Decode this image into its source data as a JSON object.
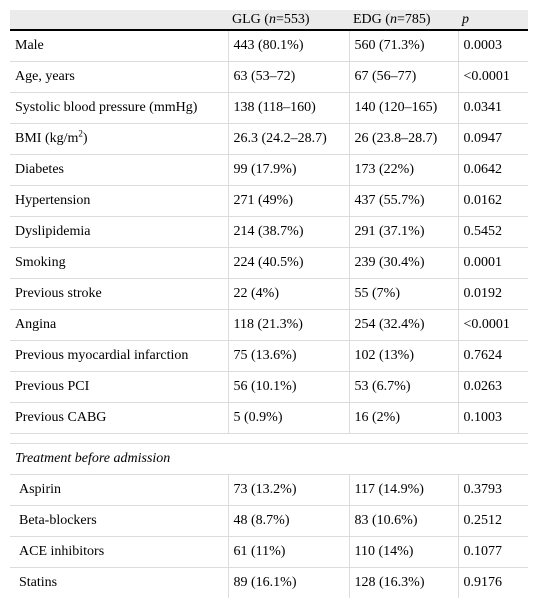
{
  "header": {
    "col1": "",
    "glg_prefix": "GLG (",
    "glg_n": "n",
    "glg_suffix": "=553)",
    "edg_prefix": "EDG (",
    "edg_n": "n",
    "edg_suffix": "=785)",
    "p": "p"
  },
  "rows": [
    {
      "label": "Male",
      "glg": "443 (80.1%)",
      "edg": "560 (71.3%)",
      "p": "0.0003"
    },
    {
      "label": "Age, years",
      "glg": "63 (53–72)",
      "edg": "67 (56–77)",
      "p": "<0.0001"
    },
    {
      "label": "Systolic blood pressure (mmHg)",
      "glg": "138 (118–160)",
      "edg": "140 (120–165)",
      "p": "0.0341"
    },
    {
      "label": "BMI (kg/m",
      "label_sup": "2",
      "label_end": ")",
      "glg": "26.3 (24.2–28.7)",
      "edg": "26 (23.8–28.7)",
      "p": "0.0947"
    },
    {
      "label": "Diabetes",
      "glg": "99 (17.9%)",
      "edg": "173 (22%)",
      "p": "0.0642"
    },
    {
      "label": "Hypertension",
      "glg": "271 (49%)",
      "edg": "437 (55.7%)",
      "p": "0.0162"
    },
    {
      "label": "Dyslipidemia",
      "glg": "214 (38.7%)",
      "edg": "291 (37.1%)",
      "p": "0.5452"
    },
    {
      "label": "Smoking",
      "glg": "224 (40.5%)",
      "edg": "239 (30.4%)",
      "p": "0.0001"
    },
    {
      "label": "Previous stroke",
      "glg": "22 (4%)",
      "edg": "55 (7%)",
      "p": "0.0192"
    },
    {
      "label": "Angina",
      "glg": "118 (21.3%)",
      "edg": "254 (32.4%)",
      "p": "<0.0001"
    },
    {
      "label": "Previous myocardial infarction",
      "glg": "75 (13.6%)",
      "edg": "102 (13%)",
      "p": "0.7624"
    },
    {
      "label": "Previous PCI",
      "glg": "56 (10.1%)",
      "edg": "53 (6.7%)",
      "p": "0.0263"
    },
    {
      "label": "Previous CABG",
      "glg": "5 (0.9%)",
      "edg": "16 (2%)",
      "p": "0.1003"
    }
  ],
  "section": {
    "title": "Treatment before admission",
    "rows": [
      {
        "label": "Aspirin",
        "glg": "73 (13.2%)",
        "edg": "117 (14.9%)",
        "p": "0.3793"
      },
      {
        "label": "Beta-blockers",
        "glg": "48 (8.7%)",
        "edg": "83 (10.6%)",
        "p": "0.2512"
      },
      {
        "label": "ACE inhibitors",
        "glg": "61 (11%)",
        "edg": "110 (14%)",
        "p": "0.1077"
      },
      {
        "label": "Statins",
        "glg": "89 (16.1%)",
        "edg": "128 (16.3%)",
        "p": "0.9176"
      }
    ]
  }
}
